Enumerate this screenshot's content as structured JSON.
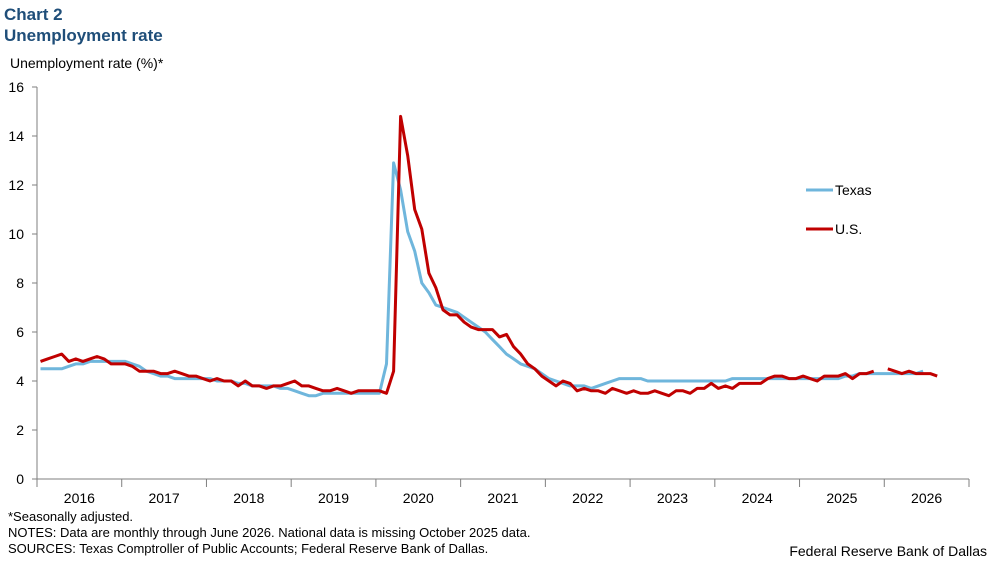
{
  "header": {
    "label": "Chart 2",
    "title": "Unemployment rate"
  },
  "footer": {
    "seasonal": "*Seasonally adjusted.",
    "notes": "NOTES: Data are monthly through June 2026. National data is missing October 2025 data.",
    "sources": "SOURCES: Texas Comptroller of Public Accounts; Federal Reserve Bank of Dallas.",
    "credit": "Federal Reserve Bank of Dallas"
  },
  "chart_data": {
    "type": "line",
    "ylabel": "Unemployment  rate (%)*",
    "xlabel": "",
    "ylim": [
      0,
      16
    ],
    "yticks": [
      0,
      2,
      4,
      6,
      8,
      10,
      12,
      14,
      16
    ],
    "xlim": [
      "2016-01",
      "2026-12"
    ],
    "year_labels": [
      "2016",
      "2017",
      "2018",
      "2019",
      "2020",
      "2021",
      "2022",
      "2023",
      "2024",
      "2025",
      "2026"
    ],
    "grid": false,
    "legend_position": "right",
    "series": [
      {
        "name": "Texas",
        "color": "#6fb6dc",
        "start": "2016-01",
        "values": [
          4.5,
          4.5,
          4.5,
          4.5,
          4.6,
          4.7,
          4.7,
          4.8,
          4.8,
          4.8,
          4.8,
          4.8,
          4.8,
          4.7,
          4.6,
          4.4,
          4.3,
          4.2,
          4.2,
          4.1,
          4.1,
          4.1,
          4.1,
          4.1,
          4.1,
          4.0,
          4.0,
          4.0,
          3.9,
          3.9,
          3.8,
          3.8,
          3.8,
          3.8,
          3.7,
          3.7,
          3.6,
          3.5,
          3.4,
          3.4,
          3.5,
          3.5,
          3.5,
          3.5,
          3.5,
          3.5,
          3.5,
          3.5,
          3.5,
          4.7,
          12.9,
          11.8,
          10.1,
          9.3,
          8.0,
          7.6,
          7.1,
          7.0,
          6.9,
          6.8,
          6.6,
          6.4,
          6.2,
          6.0,
          5.7,
          5.4,
          5.1,
          4.9,
          4.7,
          4.6,
          4.5,
          4.3,
          4.1,
          4.0,
          3.9,
          3.8,
          3.8,
          3.8,
          3.7,
          3.8,
          3.9,
          4.0,
          4.1,
          4.1,
          4.1,
          4.1,
          4.0,
          4.0,
          4.0,
          4.0,
          4.0,
          4.0,
          4.0,
          4.0,
          4.0,
          4.0,
          4.0,
          4.0,
          4.1,
          4.1,
          4.1,
          4.1,
          4.1,
          4.1,
          4.1,
          4.1,
          4.1,
          4.1,
          4.1,
          4.1,
          4.1,
          4.1,
          4.1,
          4.1,
          4.2,
          4.2,
          4.3,
          4.3,
          4.3,
          4.3,
          4.3,
          4.3,
          4.3,
          4.3,
          4.3,
          4.4
        ]
      },
      {
        "name": "U.S.",
        "color": "#c00000",
        "start": "2016-01",
        "values": [
          4.8,
          4.9,
          5.0,
          5.1,
          4.8,
          4.9,
          4.8,
          4.9,
          5.0,
          4.9,
          4.7,
          4.7,
          4.7,
          4.6,
          4.4,
          4.4,
          4.4,
          4.3,
          4.3,
          4.4,
          4.3,
          4.2,
          4.2,
          4.1,
          4.0,
          4.1,
          4.0,
          4.0,
          3.8,
          4.0,
          3.8,
          3.8,
          3.7,
          3.8,
          3.8,
          3.9,
          4.0,
          3.8,
          3.8,
          3.7,
          3.6,
          3.6,
          3.7,
          3.6,
          3.5,
          3.6,
          3.6,
          3.6,
          3.6,
          3.5,
          4.4,
          14.8,
          13.2,
          11.0,
          10.2,
          8.4,
          7.8,
          6.9,
          6.7,
          6.7,
          6.4,
          6.2,
          6.1,
          6.1,
          6.1,
          5.8,
          5.9,
          5.4,
          5.1,
          4.7,
          4.5,
          4.2,
          4.0,
          3.8,
          4.0,
          3.9,
          3.6,
          3.7,
          3.6,
          3.6,
          3.5,
          3.7,
          3.6,
          3.5,
          3.6,
          3.5,
          3.5,
          3.6,
          3.5,
          3.4,
          3.6,
          3.6,
          3.5,
          3.7,
          3.7,
          3.9,
          3.7,
          3.8,
          3.7,
          3.9,
          3.9,
          3.9,
          3.9,
          4.1,
          4.2,
          4.2,
          4.1,
          4.1,
          4.2,
          4.1,
          4.0,
          4.2,
          4.2,
          4.2,
          4.3,
          4.1,
          4.3,
          4.3,
          4.4,
          null,
          4.5,
          4.4,
          4.3,
          4.4,
          4.3,
          4.3,
          4.3,
          4.2
        ]
      }
    ]
  }
}
